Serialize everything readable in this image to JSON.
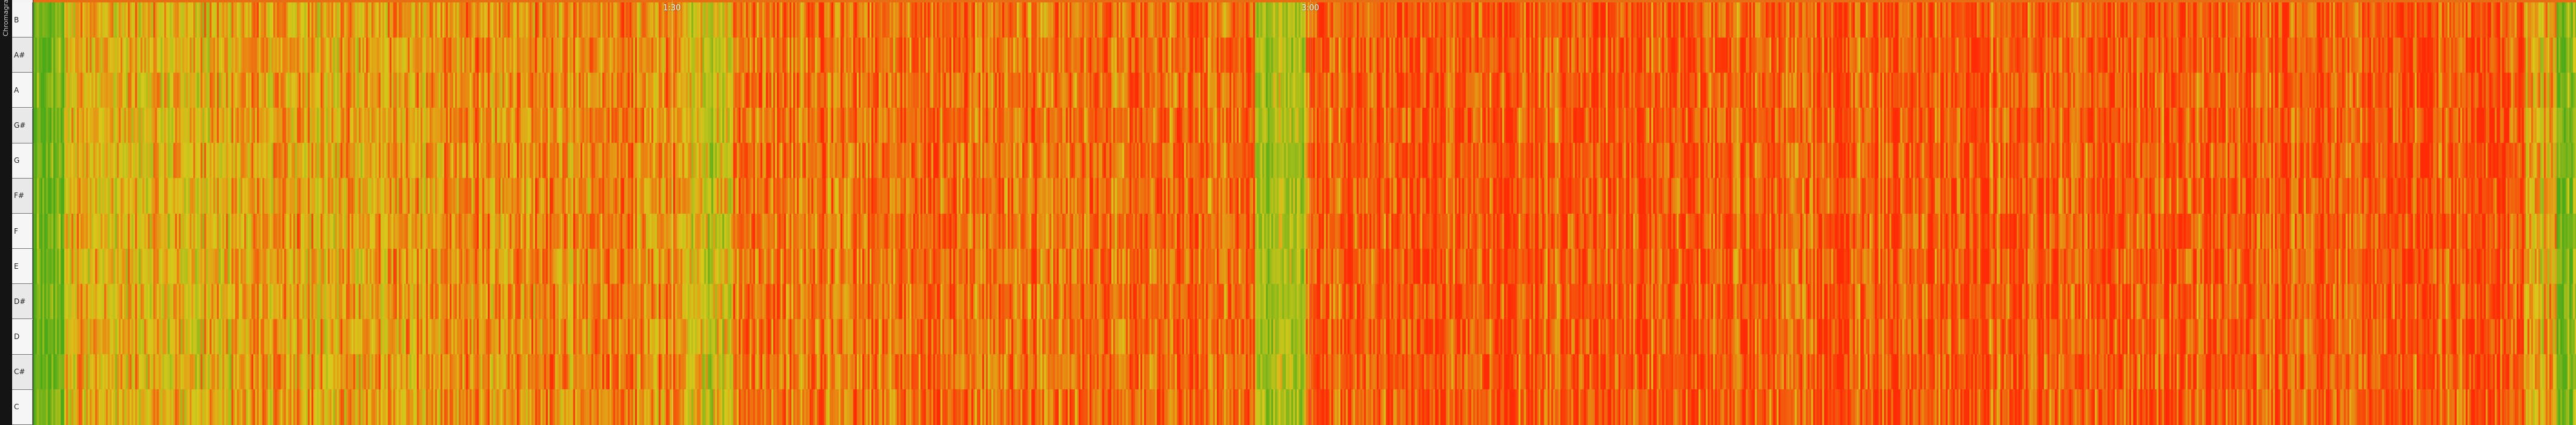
{
  "mode_label": "Chromagram",
  "pitch_classes": [
    "B",
    "A#",
    "A",
    "G#",
    "G",
    "F#",
    "F",
    "E",
    "D#",
    "D",
    "C#",
    "C"
  ],
  "time_labels": [
    {
      "label": "1:30",
      "t": 90
    },
    {
      "label": "3:00",
      "t": 180
    }
  ],
  "timeline": {
    "start_seconds": 0,
    "end_seconds": 358.4
  },
  "colors": {
    "low": "#4caa19",
    "mid": "#d9c81b",
    "high": "#ff2b06",
    "background": "#1b1b1b"
  }
}
